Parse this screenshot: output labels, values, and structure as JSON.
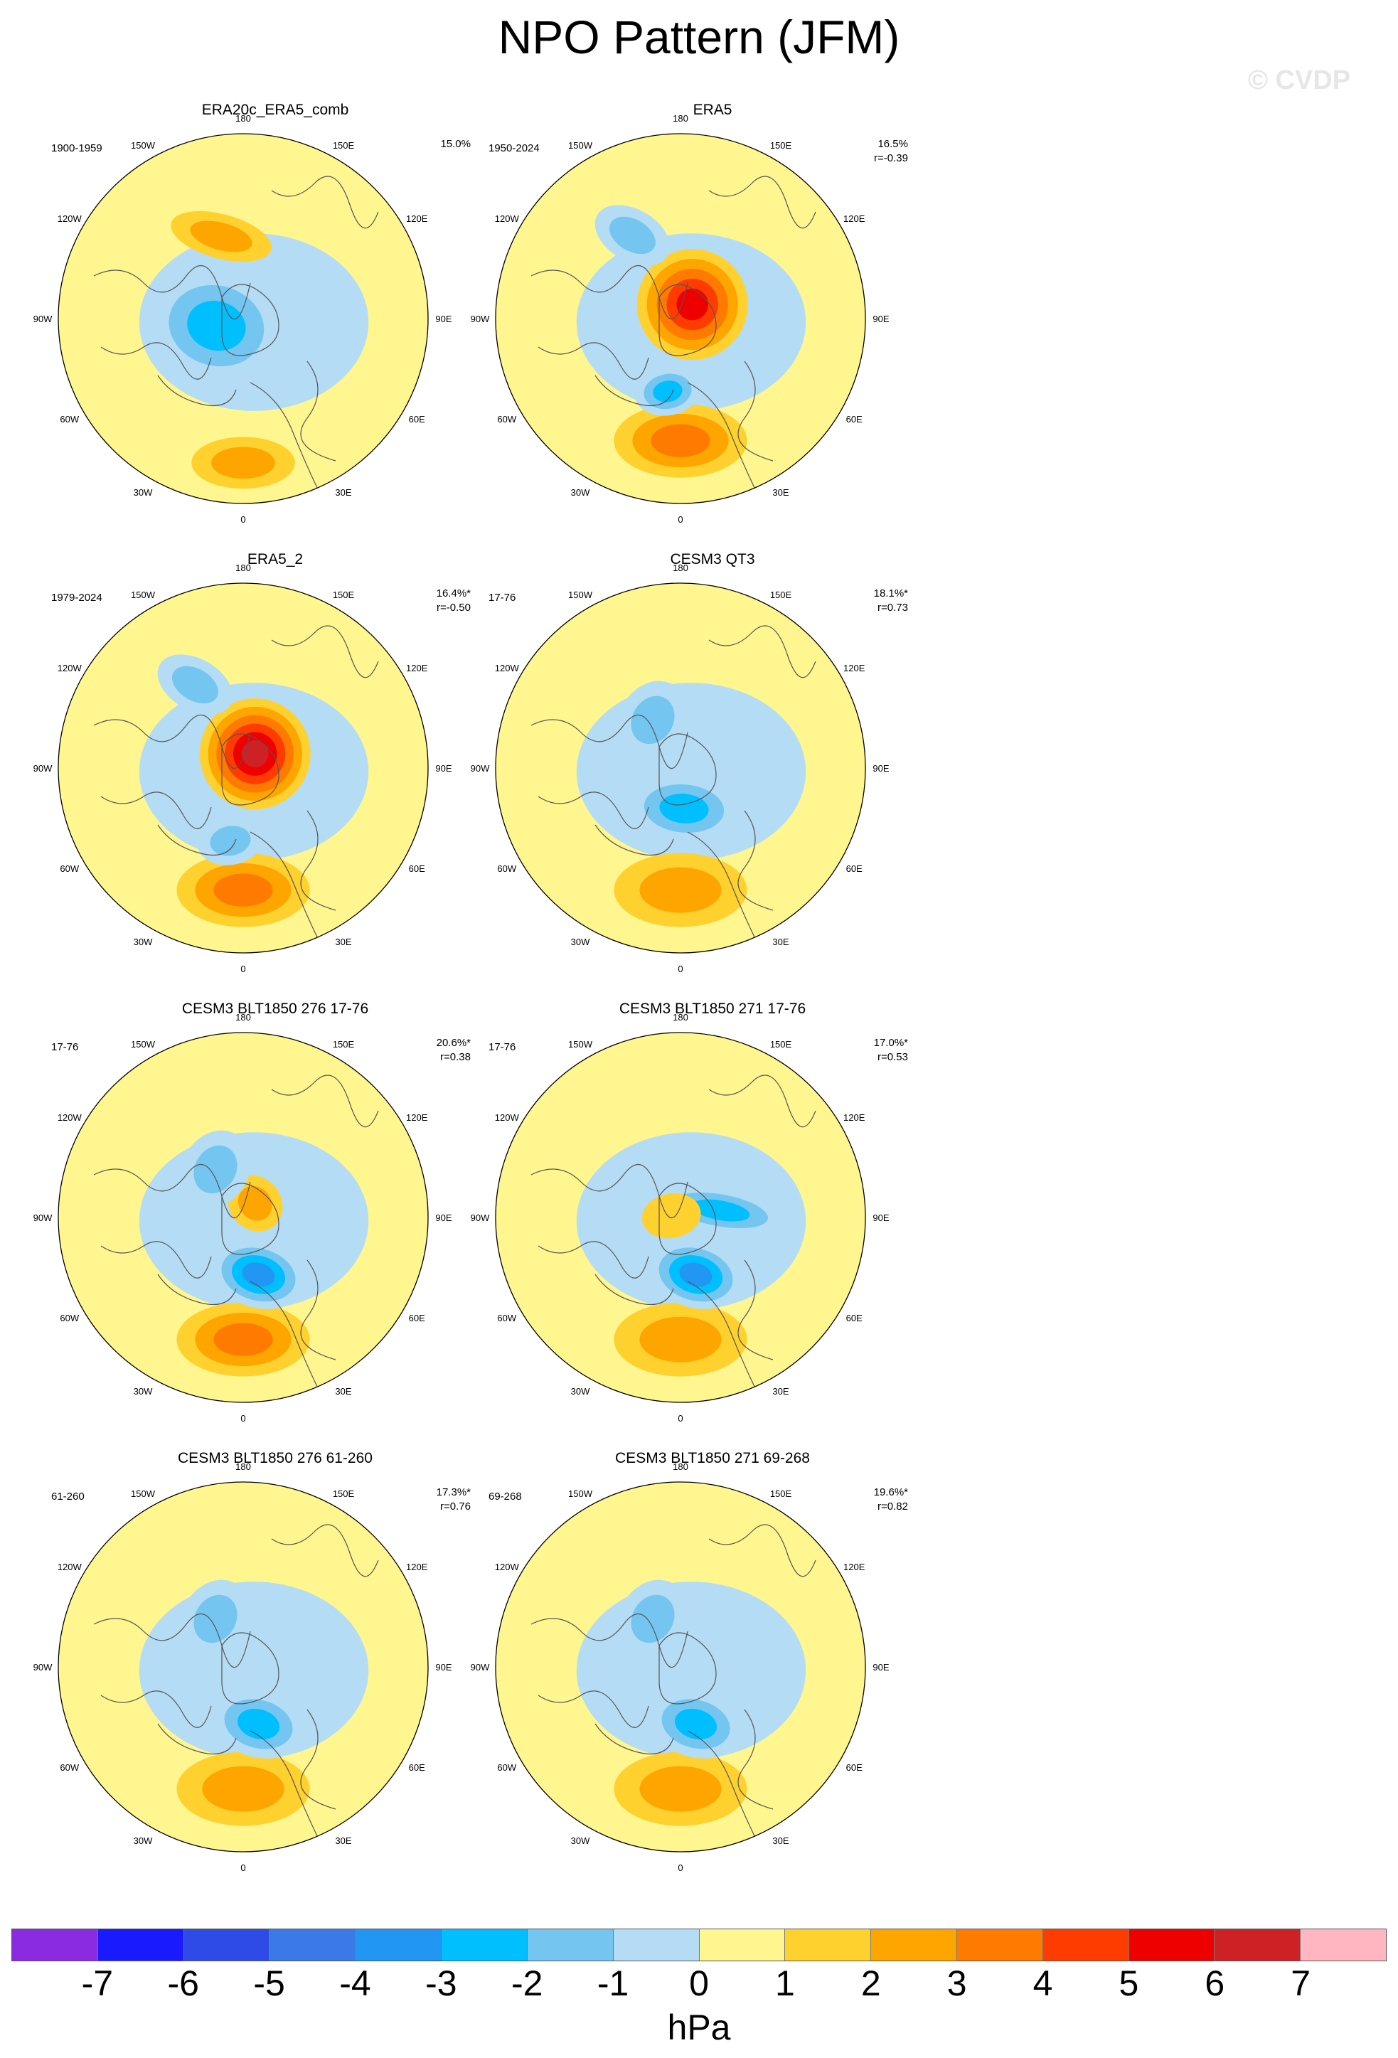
{
  "title": "NPO Pattern (JFM)",
  "watermark": "© CVDP",
  "colorbar": {
    "units": "hPa",
    "ticks": [
      "-7",
      "-6",
      "-5",
      "-4",
      "-3",
      "-2",
      "-1",
      "0",
      "1",
      "2",
      "3",
      "4",
      "5",
      "6",
      "7"
    ],
    "colors": [
      "#8a2be2",
      "#1a1aff",
      "#2e4be8",
      "#3a7ae8",
      "#2196f3",
      "#00bfff",
      "#74c6f0",
      "#b4dcf5",
      "#fff68f",
      "#fed12f",
      "#ffa500",
      "#ff7a00",
      "#ff3c00",
      "#ee0000",
      "#cd2126",
      "#ffb6c1"
    ]
  },
  "chart_data": {
    "type": "heatmap",
    "variable": "Sea level pressure EOF pattern (hPa)",
    "projection": "north-polar-stereographic",
    "longitude_labels": [
      "180",
      "150E",
      "120E",
      "90E",
      "60E",
      "30E",
      "0",
      "30W",
      "60W",
      "90W",
      "120W",
      "150W"
    ],
    "panels": [
      {
        "title": "ERA20c_ERA5_comb",
        "years": "1900-1959",
        "pct": "15.0%",
        "r": "",
        "features": [
          {
            "sign": "pos",
            "max_hpa": 2,
            "region": "north-pacific-rim"
          },
          {
            "sign": "neg",
            "min_hpa": -3,
            "region": "arctic-canada"
          },
          {
            "sign": "pos",
            "max_hpa": 2,
            "region": "north-atlantic-iceland"
          }
        ]
      },
      {
        "title": "ERA5",
        "years": "1950-2024",
        "pct": "16.5%",
        "r": "r=-0.39",
        "features": [
          {
            "sign": "pos",
            "max_hpa": 3,
            "region": "north-pacific"
          },
          {
            "sign": "neg",
            "min_hpa": -3,
            "region": "alaska-bering"
          },
          {
            "sign": "pos",
            "max_hpa": 5,
            "region": "central-arctic"
          },
          {
            "sign": "neg",
            "min_hpa": -2,
            "region": "north-atlantic"
          }
        ]
      },
      {
        "title": "ERA5_2",
        "years": "1979-2024",
        "pct": "16.4%*",
        "r": "r=-0.50",
        "features": [
          {
            "sign": "pos",
            "max_hpa": 3,
            "region": "north-pacific"
          },
          {
            "sign": "neg",
            "min_hpa": -2,
            "region": "alaska-bering"
          },
          {
            "sign": "pos",
            "max_hpa": 6,
            "region": "central-arctic"
          },
          {
            "sign": "neg",
            "min_hpa": -2,
            "region": "north-atlantic"
          }
        ]
      },
      {
        "title": "CESM3 QT3",
        "years": "17-76",
        "pct": "18.1%*",
        "r": "r=0.73",
        "features": [
          {
            "sign": "pos",
            "max_hpa": 2,
            "region": "north-pacific"
          },
          {
            "sign": "neg",
            "min_hpa": -3,
            "region": "bering-arctic"
          },
          {
            "sign": "neg",
            "min_hpa": -2,
            "region": "greenland-atlantic"
          }
        ]
      },
      {
        "title": "CESM3 BLT1850 276 17-76",
        "years": "17-76",
        "pct": "20.6%*",
        "r": "r=0.38",
        "features": [
          {
            "sign": "pos",
            "max_hpa": 3,
            "region": "north-pacific"
          },
          {
            "sign": "neg",
            "min_hpa": -4,
            "region": "bering-siberia"
          },
          {
            "sign": "pos",
            "max_hpa": 2,
            "region": "arctic-ocean"
          },
          {
            "sign": "neg",
            "min_hpa": -2,
            "region": "greenland-atlantic"
          }
        ]
      },
      {
        "title": "CESM3 BLT1850 271 17-76",
        "years": "17-76",
        "pct": "17.0%*",
        "r": "r=0.53",
        "features": [
          {
            "sign": "pos",
            "max_hpa": 2,
            "region": "north-pacific"
          },
          {
            "sign": "neg",
            "min_hpa": -4,
            "region": "bering-siberia"
          },
          {
            "sign": "neg",
            "min_hpa": -3,
            "region": "eurasian-arctic"
          },
          {
            "sign": "pos",
            "max_hpa": 1,
            "region": "canadian-arctic"
          }
        ]
      },
      {
        "title": "CESM3 BLT1850 276 61-260",
        "years": "61-260",
        "pct": "17.3%*",
        "r": "r=0.76",
        "features": [
          {
            "sign": "pos",
            "max_hpa": 2,
            "region": "north-pacific"
          },
          {
            "sign": "neg",
            "min_hpa": -3,
            "region": "bering-siberia"
          },
          {
            "sign": "neg",
            "min_hpa": -2,
            "region": "greenland-atlantic"
          }
        ]
      },
      {
        "title": "CESM3 BLT1850 271 69-268",
        "years": "69-268",
        "pct": "19.6%*",
        "r": "r=0.82",
        "features": [
          {
            "sign": "pos",
            "max_hpa": 2,
            "region": "north-pacific"
          },
          {
            "sign": "neg",
            "min_hpa": -3,
            "region": "bering-siberia"
          },
          {
            "sign": "neg",
            "min_hpa": -2,
            "region": "greenland-atlantic"
          }
        ]
      }
    ]
  }
}
